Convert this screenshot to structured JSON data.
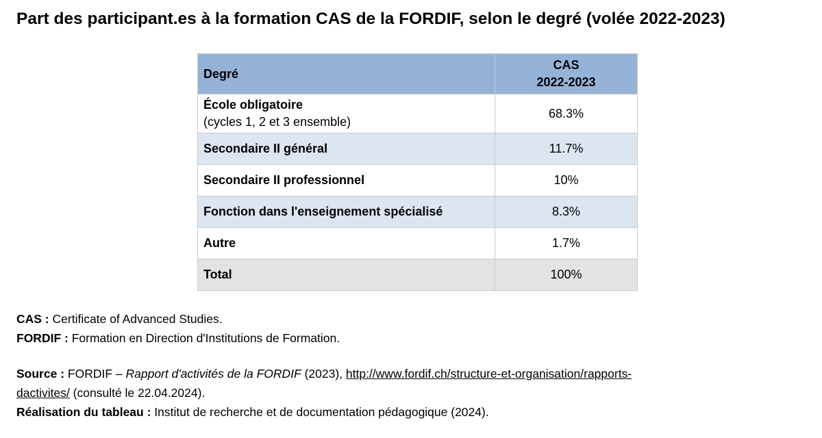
{
  "title": "Part des participant.es à la formation CAS de la FORDIF, selon le degré (volée 2022-2023)",
  "table": {
    "header": {
      "col1": "Degré",
      "col2_line1": "CAS",
      "col2_line2": "2022-2023"
    },
    "rows": [
      {
        "label": "École obligatoire",
        "sublabel": "(cycles 1, 2 et 3 ensemble)",
        "value": "68.3%"
      },
      {
        "label": "Secondaire II général",
        "value": "11.7%"
      },
      {
        "label": "Secondaire II professionnel",
        "value": "10%"
      },
      {
        "label": "Fonction dans l'enseignement spécialisé",
        "value": "8.3%"
      },
      {
        "label": "Autre",
        "value": "1.7%"
      },
      {
        "label": "Total",
        "value": "100%"
      }
    ]
  },
  "notes": {
    "cas_term": "CAS :",
    "cas_def": " Certificate of Advanced Studies.",
    "fordif_term": "FORDIF :",
    "fordif_def": " Formation en Direction d'Institutions de Formation.",
    "source_term": "Source :",
    "source_prefix": " FORDIF – ",
    "source_title": "Rapport d'activités de la FORDIF",
    "source_year": " (2023), ",
    "source_url_part1": "http://www.fordif.ch/structure-et-organisation/rapports-",
    "source_url_part2": "dactivites/",
    "source_consulted": " (consulté le 22.04.2024).",
    "realisation_term": "Réalisation du tableau :",
    "realisation_def": " Institut de recherche et de documentation pédagogique (2024)."
  },
  "colors": {
    "header_bg": "#95b3d7",
    "band_bg": "#dce6f1",
    "total_bg": "#e3e3e3",
    "border": "#c9c9c9"
  }
}
